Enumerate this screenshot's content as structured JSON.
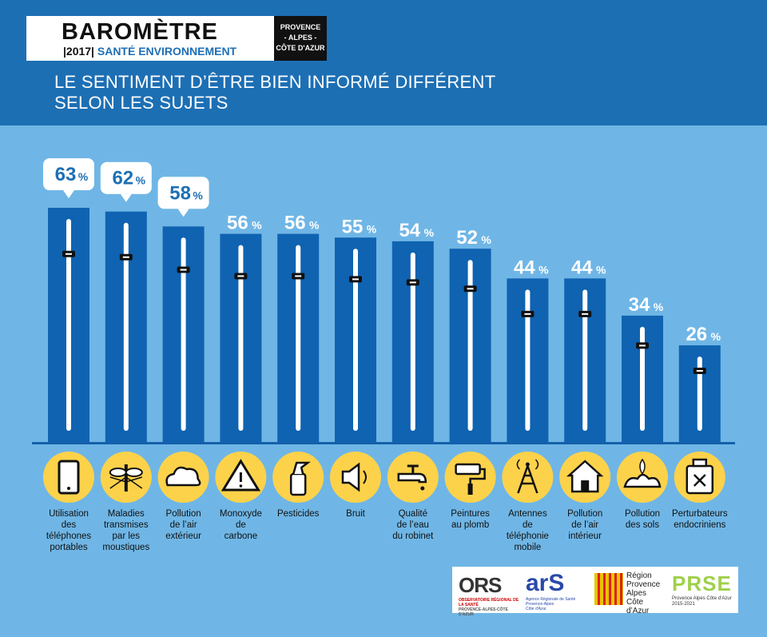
{
  "header": {
    "brand": "BAROMÈTRE",
    "year": "|2017|",
    "program": "SANTÉ ENVIRONNEMENT",
    "region_lines": [
      "PROVENCE",
      "- ALPES -",
      "CÔTE D'AZUR"
    ],
    "subtitle_line1": "LE SENTIMENT D’ÊTRE BIEN INFORMÉ DIFFÉRENT",
    "subtitle_line2": "SELON LES SUJETS"
  },
  "colors": {
    "header_bg": "#1d6fb4",
    "page_bg": "#6fb6e6",
    "bar": "#0f63b1",
    "icon_circle": "#fdd24b",
    "value_text": "#ffffff",
    "bubble_text": "#1d6fb4"
  },
  "chart_data": {
    "type": "bar",
    "categories": [
      "Utilisation des téléphones portables",
      "Maladies transmises par les moustiques",
      "Pollution de l’air extérieur",
      "Monoxyde de carbone",
      "Pesticides",
      "Bruit",
      "Qualité de l’eau du robinet",
      "Peintures au plomb",
      "Antennes de téléphonie mobile",
      "Pollution de l’air intérieur",
      "Pollution des sols",
      "Perturbateurs endocriniens"
    ],
    "category_lines": [
      [
        "Utilisation",
        "des",
        "téléphones",
        "portables"
      ],
      [
        "Maladies",
        "transmises",
        "par les",
        "moustiques"
      ],
      [
        "Pollution",
        "de l’air",
        "extérieur"
      ],
      [
        "Monoxyde",
        "de",
        "carbone"
      ],
      [
        "Pesticides"
      ],
      [
        "Bruit"
      ],
      [
        "Qualité",
        "de l’eau",
        "du robinet"
      ],
      [
        "Peintures",
        "au plomb"
      ],
      [
        "Antennes",
        "de",
        "téléphonie",
        "mobile"
      ],
      [
        "Pollution",
        "de l’air",
        "intérieur"
      ],
      [
        "Pollution",
        "des sols"
      ],
      [
        "Perturbateurs",
        "endocriniens"
      ]
    ],
    "values": [
      63,
      62,
      58,
      56,
      56,
      55,
      54,
      52,
      44,
      44,
      34,
      26
    ],
    "value_labels": [
      "63",
      "62",
      "58",
      "56",
      "56",
      "55",
      "54",
      "52",
      "44",
      "44",
      "34",
      "26"
    ],
    "unit": "%",
    "highlighted": [
      0,
      1,
      2
    ],
    "icons": [
      "phone-icon",
      "mosquito-icon",
      "cloud-icon",
      "warning-icon",
      "spray-icon",
      "speaker-icon",
      "faucet-icon",
      "paint-roller-icon",
      "antenna-icon",
      "house-icon",
      "soil-icon",
      "chemical-can-icon"
    ],
    "ylim": [
      0,
      100
    ]
  },
  "logos": {
    "ors": "ORS",
    "ors_sub": "OBSERVATOIRE RÉGIONAL DE LA SANTÉ",
    "ors_sub2": "PROVENCE-ALPES-CÔTE D'AZUR",
    "ars": "arS",
    "ars_sub": [
      "Agence Régionale de Santé",
      "Provence-Alpes",
      "Côte d'Azur"
    ],
    "region_lines": [
      "Région",
      "Provence",
      "Alpes",
      "Côte d’Azur"
    ],
    "prse": "PRSE",
    "prse_sub": "Provence Alpes Côte d’Azur",
    "prse_years": "2015-2021"
  }
}
